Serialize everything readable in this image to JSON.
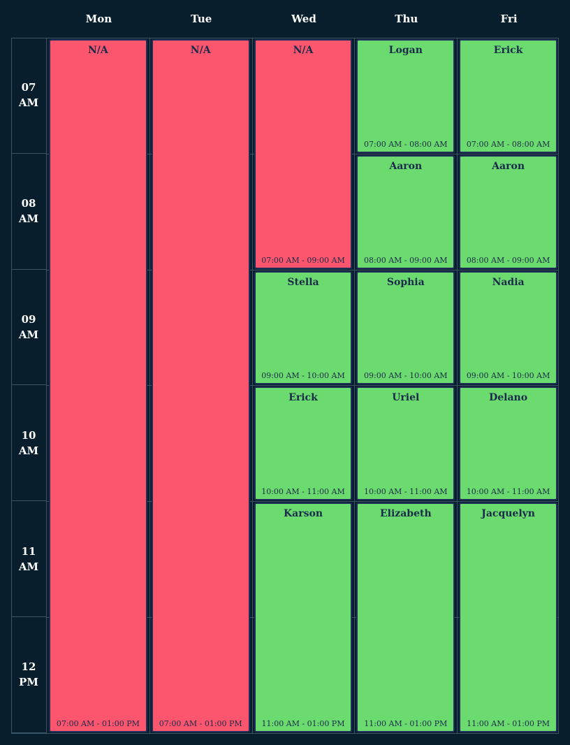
{
  "days": [
    "Mon",
    "Tue",
    "Wed",
    "Thu",
    "Fri"
  ],
  "hours": [
    {
      "h": "07",
      "p": "AM"
    },
    {
      "h": "08",
      "p": "AM"
    },
    {
      "h": "09",
      "p": "AM"
    },
    {
      "h": "10",
      "p": "AM"
    },
    {
      "h": "11",
      "p": "AM"
    },
    {
      "h": "12",
      "p": "PM"
    }
  ],
  "colors": {
    "background": "#081e2c",
    "unavailable": "#fb566e",
    "booked": "#6bdb6f",
    "event_text": "#1a2a4a",
    "header_text": "#ffffff"
  },
  "events": [
    {
      "day": "Mon",
      "name": "N/A",
      "time": "07:00 AM - 01:00 PM",
      "status": "unavailable"
    },
    {
      "day": "Tue",
      "name": "N/A",
      "time": "07:00 AM - 01:00 PM",
      "status": "unavailable"
    },
    {
      "day": "Wed",
      "name": "N/A",
      "time": "07:00 AM - 09:00 AM",
      "status": "unavailable"
    },
    {
      "day": "Wed",
      "name": "Stella",
      "time": "09:00 AM - 10:00 AM",
      "status": "booked"
    },
    {
      "day": "Wed",
      "name": "Erick",
      "time": "10:00 AM - 11:00 AM",
      "status": "booked"
    },
    {
      "day": "Wed",
      "name": "Karson",
      "time": "11:00 AM - 01:00 PM",
      "status": "booked"
    },
    {
      "day": "Thu",
      "name": "Logan",
      "time": "07:00 AM - 08:00 AM",
      "status": "booked"
    },
    {
      "day": "Thu",
      "name": "Aaron",
      "time": "08:00 AM - 09:00 AM",
      "status": "booked"
    },
    {
      "day": "Thu",
      "name": "Sophia",
      "time": "09:00 AM - 10:00 AM",
      "status": "booked"
    },
    {
      "day": "Thu",
      "name": "Uriel",
      "time": "10:00 AM - 11:00 AM",
      "status": "booked"
    },
    {
      "day": "Thu",
      "name": "Elizabeth",
      "time": "11:00 AM - 01:00 PM",
      "status": "booked"
    },
    {
      "day": "Fri",
      "name": "Erick",
      "time": "07:00 AM - 08:00 AM",
      "status": "booked"
    },
    {
      "day": "Fri",
      "name": "Aaron",
      "time": "08:00 AM - 09:00 AM",
      "status": "booked"
    },
    {
      "day": "Fri",
      "name": "Nadia",
      "time": "09:00 AM - 10:00 AM",
      "status": "booked"
    },
    {
      "day": "Fri",
      "name": "Delano",
      "time": "10:00 AM - 11:00 AM",
      "status": "booked"
    },
    {
      "day": "Fri",
      "name": "Jacquelyn",
      "time": "11:00 AM - 01:00 PM",
      "status": "booked"
    }
  ]
}
